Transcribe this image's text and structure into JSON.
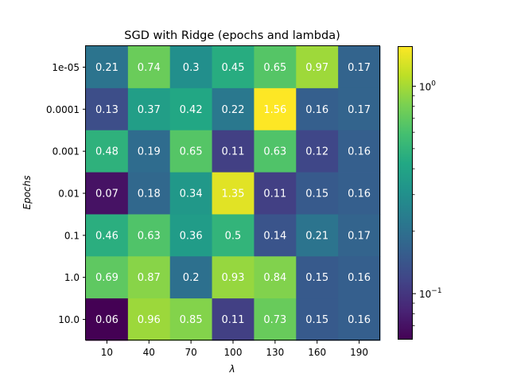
{
  "chart_data": {
    "type": "heatmap",
    "title": "SGD with Ridge (epochs and lambda)",
    "xlabel": "λ",
    "ylabel": "Epochs",
    "x_categories": [
      "10",
      "40",
      "70",
      "100",
      "130",
      "160",
      "190"
    ],
    "y_categories": [
      "1e-05",
      "0.0001",
      "0.001",
      "0.01",
      "0.1",
      "1.0",
      "10.0"
    ],
    "values": [
      [
        0.21,
        0.74,
        0.3,
        0.45,
        0.65,
        0.97,
        0.17
      ],
      [
        0.13,
        0.37,
        0.42,
        0.22,
        1.56,
        0.16,
        0.17
      ],
      [
        0.48,
        0.19,
        0.65,
        0.11,
        0.63,
        0.12,
        0.16
      ],
      [
        0.07,
        0.18,
        0.34,
        1.35,
        0.11,
        0.15,
        0.16
      ],
      [
        0.46,
        0.63,
        0.36,
        0.5,
        0.14,
        0.21,
        0.17
      ],
      [
        0.69,
        0.87,
        0.2,
        0.93,
        0.84,
        0.15,
        0.16
      ],
      [
        0.06,
        0.96,
        0.85,
        0.11,
        0.73,
        0.15,
        0.16
      ]
    ],
    "colorbar": {
      "scale": "log",
      "colormap": "viridis",
      "min": 0.06,
      "max": 1.56,
      "ticks": [
        {
          "value": 1,
          "label": "10^0"
        },
        {
          "value": 0.1,
          "label": "10^-1"
        }
      ]
    },
    "annotation_color": "#ffffff",
    "grid": false,
    "legend": "colorbar-right"
  }
}
